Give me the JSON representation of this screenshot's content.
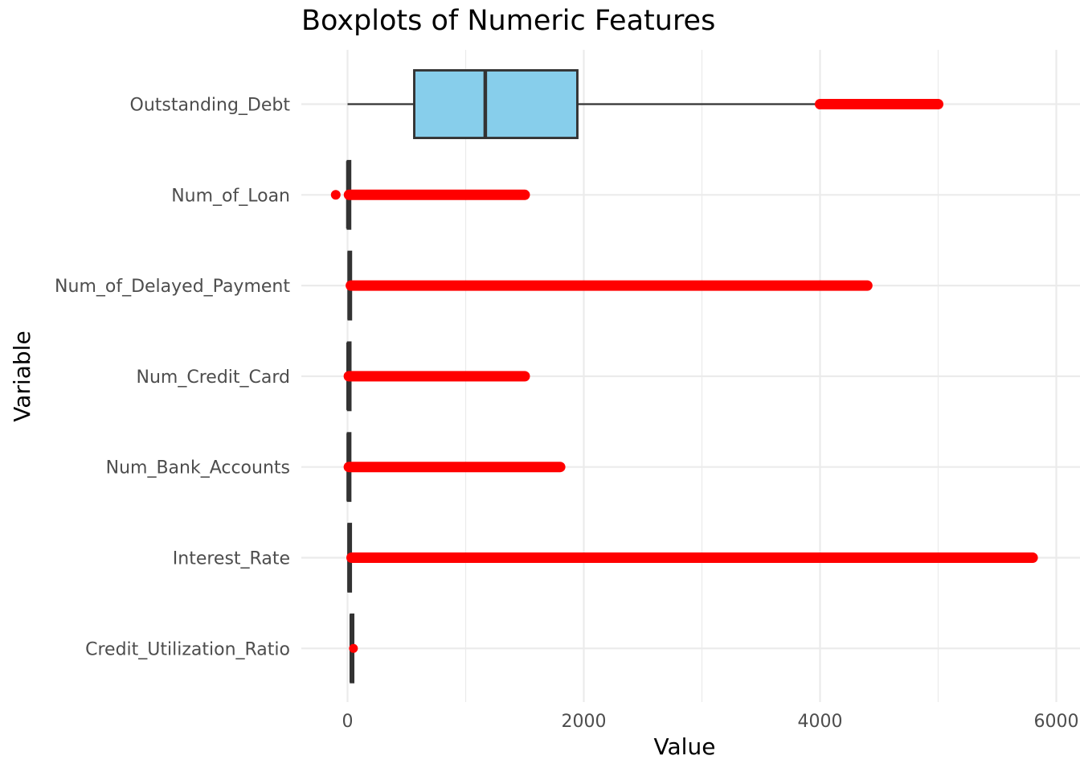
{
  "chart_data": {
    "type": "boxplot",
    "title": "Boxplots of Numeric Features",
    "xlabel": "Value",
    "ylabel": "Variable",
    "xlim": [
      -400,
      6200
    ],
    "x_ticks": [
      0,
      2000,
      4000,
      6000
    ],
    "orientation": "horizontal",
    "grid": true,
    "legend": "none",
    "box_fill": "#87ceeb",
    "box_stroke": "#333333",
    "outlier_color": "#ff0000",
    "categories": [
      "Outstanding_Debt",
      "Num_of_Loan",
      "Num_of_Delayed_Payment",
      "Num_Credit_Card",
      "Num_Bank_Accounts",
      "Interest_Rate",
      "Credit_Utilization_Ratio"
    ],
    "boxes": [
      {
        "name": "Outstanding_Debt",
        "whisker_low": 0,
        "q1": 565,
        "median": 1166,
        "q3": 1945,
        "whisker_high": 4000,
        "outlier_range": [
          4000,
          5000
        ]
      },
      {
        "name": "Num_of_Loan",
        "whisker_low": 0,
        "q1": 2,
        "median": 3,
        "q3": 6,
        "whisker_high": 12,
        "outlier_range": [
          12,
          1500
        ],
        "outliers_low": [
          -100
        ]
      },
      {
        "name": "Num_of_Delayed_Payment",
        "whisker_low": 0,
        "q1": 9,
        "median": 14,
        "q3": 18,
        "whisker_high": 28,
        "outlier_range": [
          28,
          4400
        ]
      },
      {
        "name": "Num_Credit_Card",
        "whisker_low": 0,
        "q1": 4,
        "median": 5,
        "q3": 7,
        "whisker_high": 11,
        "outlier_range": [
          11,
          1500
        ]
      },
      {
        "name": "Num_Bank_Accounts",
        "whisker_low": 0,
        "q1": 3,
        "median": 6,
        "q3": 7,
        "whisker_high": 11,
        "outlier_range": [
          11,
          1800
        ]
      },
      {
        "name": "Interest_Rate",
        "whisker_low": 1,
        "q1": 8,
        "median": 13,
        "q3": 20,
        "whisker_high": 34,
        "outlier_range": [
          34,
          5800
        ]
      },
      {
        "name": "Credit_Utilization_Ratio",
        "whisker_low": 20,
        "q1": 28,
        "median": 32,
        "q3": 36,
        "whisker_high": 45,
        "outlier_range": [
          45,
          50
        ]
      }
    ]
  }
}
